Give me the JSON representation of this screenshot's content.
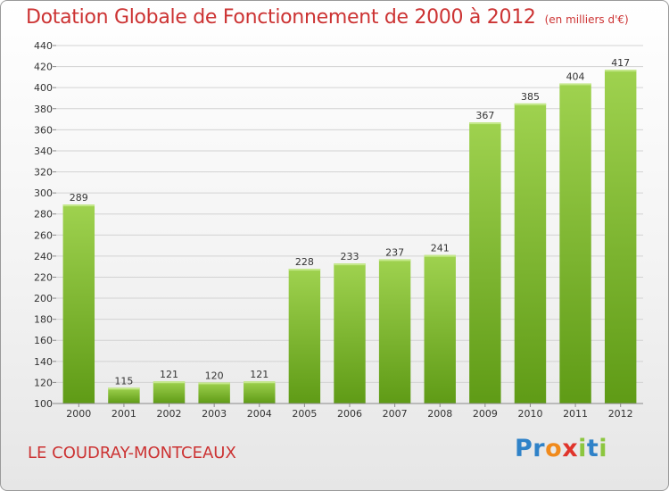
{
  "header": {
    "title": "Dotation Globale de Fonctionnement de 2000 à 2012",
    "unit": "(en milliers d'€)"
  },
  "footer": {
    "commune": "LE COUDRAY-MONTCEAUX",
    "logo_text": "Proxiti",
    "logo_letters": [
      {
        "ch": "P",
        "color": "#2f82c8"
      },
      {
        "ch": "r",
        "color": "#2f82c8"
      },
      {
        "ch": "o",
        "color": "#f08a1c"
      },
      {
        "ch": "x",
        "color": "#e0342b"
      },
      {
        "ch": "i",
        "color": "#8cc63f"
      },
      {
        "ch": "t",
        "color": "#2f82c8"
      },
      {
        "ch": "i",
        "color": "#8cc63f"
      }
    ]
  },
  "chart_data": {
    "type": "bar",
    "categories": [
      "2000",
      "2001",
      "2002",
      "2003",
      "2004",
      "2005",
      "2006",
      "2007",
      "2008",
      "2009",
      "2010",
      "2011",
      "2012"
    ],
    "values": [
      289,
      115,
      121,
      120,
      121,
      228,
      233,
      237,
      241,
      367,
      385,
      404,
      417
    ],
    "data_labels": [
      "289",
      "115",
      "121",
      "120",
      "121",
      "228",
      "233",
      "237",
      "241",
      "367",
      "385",
      "404",
      "417"
    ],
    "ylim": [
      100,
      440
    ],
    "yticks": [
      100,
      120,
      140,
      160,
      180,
      200,
      220,
      240,
      260,
      280,
      300,
      320,
      340,
      360,
      380,
      400,
      420,
      440
    ],
    "grid": true,
    "bar_color_top": "#9fd24f",
    "bar_color_bottom": "#5f9b16",
    "xlabel": "",
    "ylabel": ""
  }
}
